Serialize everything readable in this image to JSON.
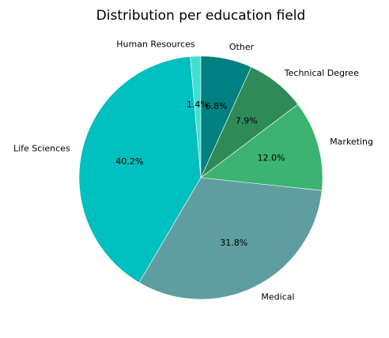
{
  "chart_data": {
    "type": "pie",
    "title": "Distribution per education field",
    "start_angle_deg": 90,
    "direction": "counterclockwise",
    "slices": [
      {
        "label": "Human Resources",
        "value": 1.4,
        "pct_label": "1.4%",
        "color": "#40e0d0"
      },
      {
        "label": "Life Sciences",
        "value": 40.2,
        "pct_label": "40.2%",
        "color": "#00bfbf"
      },
      {
        "label": "Medical",
        "value": 31.8,
        "pct_label": "31.8%",
        "color": "#5f9ea0"
      },
      {
        "label": "Marketing",
        "value": 12.0,
        "pct_label": "12.0%",
        "color": "#3cb371"
      },
      {
        "label": "Technical Degree",
        "value": 7.9,
        "pct_label": "7.9%",
        "color": "#2e8b57"
      },
      {
        "label": "Other",
        "value": 6.8,
        "pct_label": "6.8%",
        "color": "#008080"
      }
    ]
  }
}
